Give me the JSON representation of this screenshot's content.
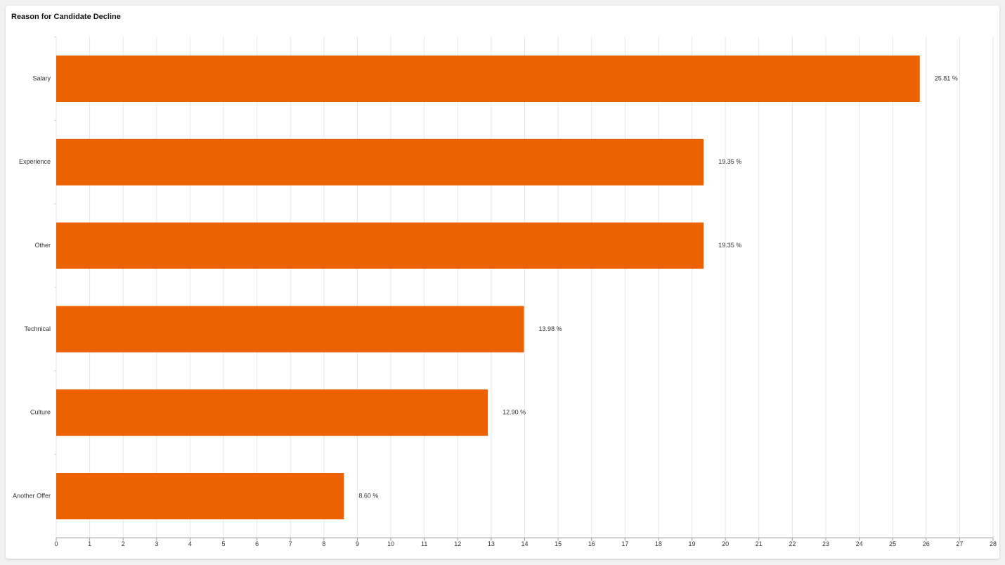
{
  "chart_data": {
    "type": "bar",
    "orientation": "horizontal",
    "title": "Reason for Candidate Decline",
    "categories": [
      "Salary",
      "Experience",
      "Other",
      "Technical",
      "Culture",
      "Another Offer"
    ],
    "values": [
      25.81,
      19.35,
      19.35,
      13.98,
      12.9,
      8.6
    ],
    "value_labels": [
      "25.81 %",
      "19.35 %",
      "19.35 %",
      "13.98 %",
      "12.90 %",
      "8.60 %"
    ],
    "color": "#ec6200",
    "xlim": [
      0,
      28
    ],
    "xticks": [
      0,
      1,
      2,
      3,
      4,
      5,
      6,
      7,
      8,
      9,
      10,
      11,
      12,
      13,
      14,
      15,
      16,
      17,
      18,
      19,
      20,
      21,
      22,
      23,
      24,
      25,
      26,
      27,
      28
    ],
    "grid": true
  }
}
